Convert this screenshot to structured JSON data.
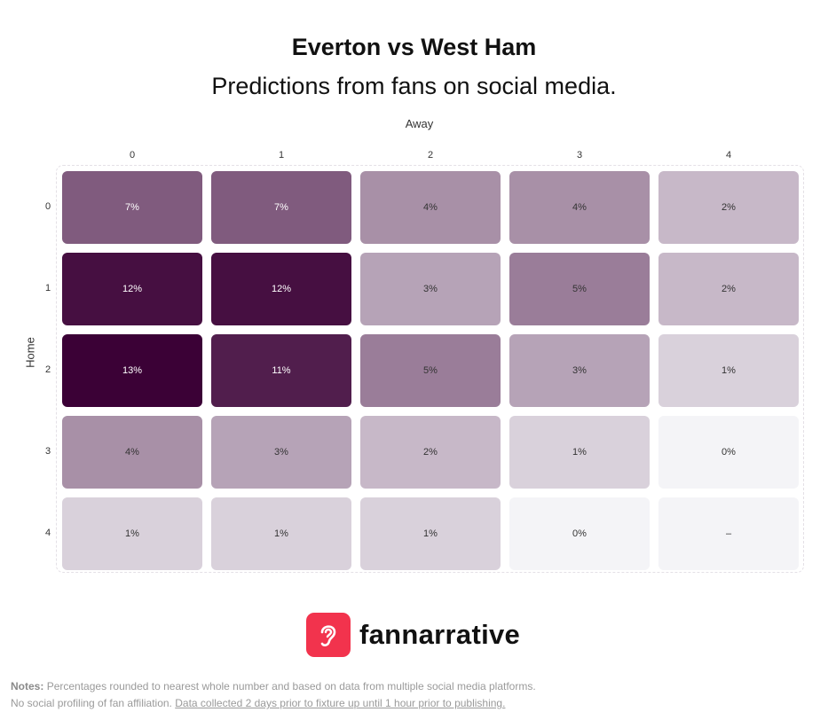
{
  "chart_data": {
    "type": "heatmap",
    "title": "Everton vs West Ham",
    "subtitle": "Predictions from fans on social media.",
    "xlabel": "Away",
    "ylabel": "Home",
    "x_categories": [
      "0",
      "1",
      "2",
      "3",
      "4"
    ],
    "y_categories": [
      "0",
      "1",
      "2",
      "3",
      "4"
    ],
    "values": [
      [
        7,
        7,
        4,
        4,
        2
      ],
      [
        12,
        12,
        3,
        5,
        2
      ],
      [
        13,
        11,
        5,
        3,
        1
      ],
      [
        4,
        3,
        2,
        1,
        0
      ],
      [
        1,
        1,
        1,
        0,
        null
      ]
    ],
    "labels": [
      [
        "7%",
        "7%",
        "4%",
        "4%",
        "2%"
      ],
      [
        "12%",
        "12%",
        "3%",
        "5%",
        "2%"
      ],
      [
        "13%",
        "11%",
        "5%",
        "3%",
        "1%"
      ],
      [
        "4%",
        "3%",
        "2%",
        "1%",
        "0%"
      ],
      [
        "1%",
        "1%",
        "1%",
        "0%",
        "–"
      ]
    ],
    "value_unit": "%",
    "color_low": "#f4f4f7",
    "color_high": "#3b0136"
  },
  "brand": {
    "name": "fannarrative",
    "color": "#f2334d",
    "icon": "ear-icon"
  },
  "notes": {
    "label": "Notes:",
    "line1": "Percentages rounded to nearest whole number and based on data from multiple social media platforms.",
    "line2_plain": "No social profiling of fan affiliation.",
    "line2_underlined": "Data collected 2 days prior to fixture up until 1 hour prior to publishing."
  }
}
